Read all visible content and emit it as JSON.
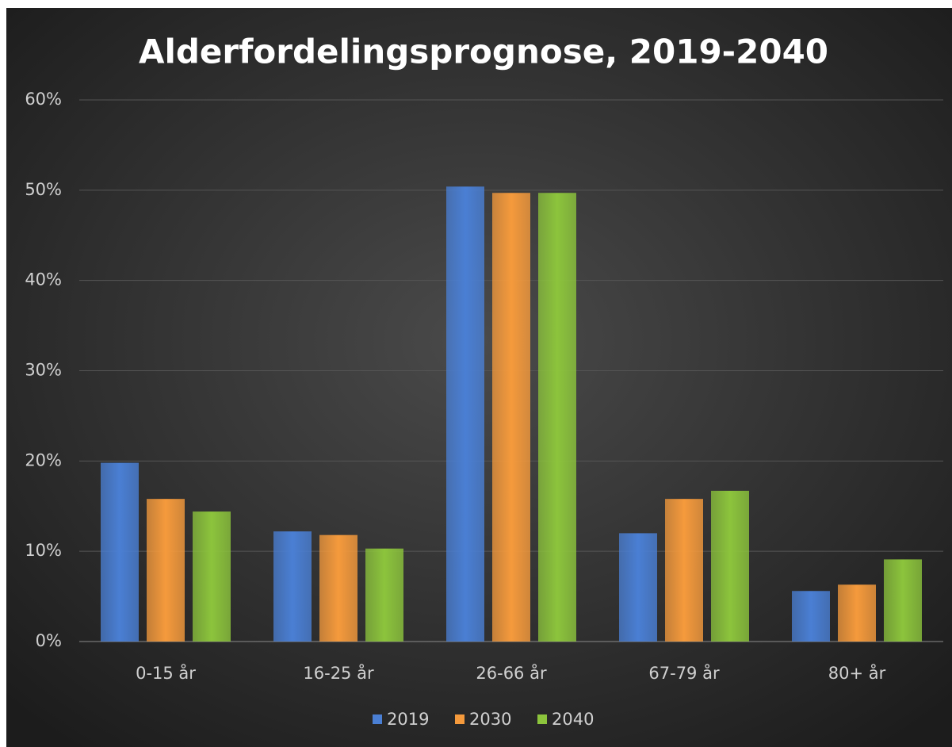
{
  "chart_data": {
    "type": "bar",
    "title": "Alderfordelingsprognose, 2019-2040",
    "categories": [
      "0-15 år",
      "16-25 år",
      "26-66 år",
      "67-79 år",
      "80+ år"
    ],
    "series": [
      {
        "name": "2019",
        "color": "#4a7fd4",
        "values": [
          19.8,
          12.2,
          50.4,
          12.0,
          5.6
        ]
      },
      {
        "name": "2030",
        "color": "#f59a3c",
        "values": [
          15.8,
          11.8,
          49.7,
          15.8,
          6.3
        ]
      },
      {
        "name": "2040",
        "color": "#8cc43c",
        "values": [
          14.4,
          10.3,
          49.7,
          16.7,
          9.1
        ]
      }
    ],
    "ylim": [
      0,
      60
    ],
    "yticks": [
      {
        "value": 0,
        "label": "0%"
      },
      {
        "value": 10,
        "label": "10%"
      },
      {
        "value": 20,
        "label": "20%"
      },
      {
        "value": 30,
        "label": "30%"
      },
      {
        "value": 40,
        "label": "40%"
      },
      {
        "value": 50,
        "label": "50%"
      },
      {
        "value": 60,
        "label": "60%"
      }
    ],
    "grid": true,
    "legend": "bottom"
  }
}
